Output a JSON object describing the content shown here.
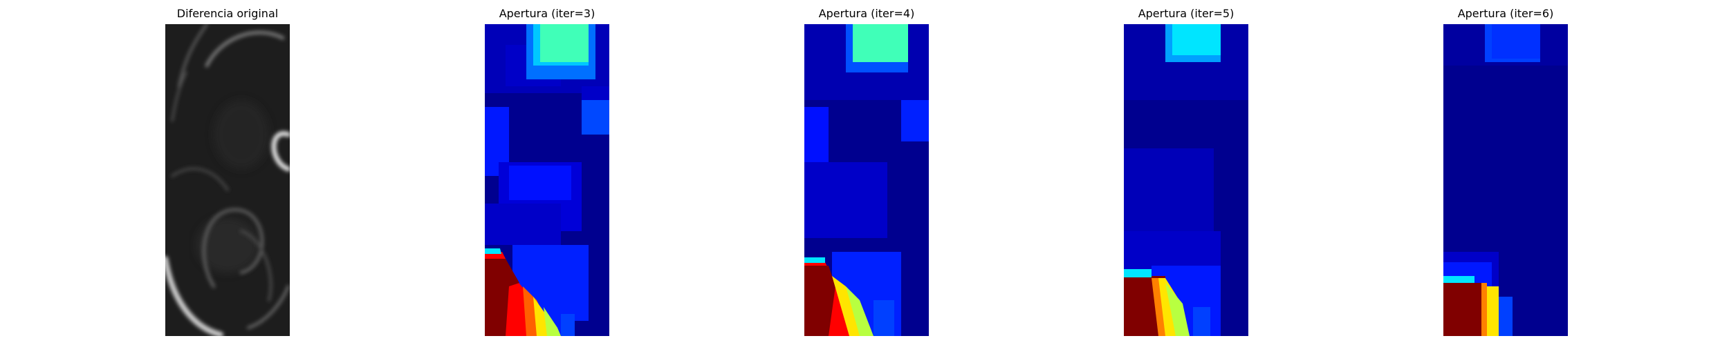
{
  "panels": [
    {
      "title": "Diferencia original",
      "kind": "grayscale-difference-image"
    },
    {
      "title": "Apertura (iter=3)",
      "kind": "jet-colormap-opening"
    },
    {
      "title": "Apertura (iter=4)",
      "kind": "jet-colormap-opening"
    },
    {
      "title": "Apertura (iter=5)",
      "kind": "jet-colormap-opening"
    },
    {
      "title": "Apertura (iter=6)",
      "kind": "jet-colormap-opening"
    }
  ],
  "colors": {
    "jet_dark_blue": "#00008f",
    "jet_blue": "#0000ff",
    "jet_mid_blue": "#0040ff",
    "jet_cyan": "#00e5ff",
    "jet_aqua": "#40ffb8",
    "jet_yellow_green": "#b8ff40",
    "jet_yellow": "#ffe500",
    "jet_red": "#ff0000",
    "jet_dark_red": "#800000",
    "gray_dark": "#161616",
    "gray_light": "#d8d8d8"
  }
}
